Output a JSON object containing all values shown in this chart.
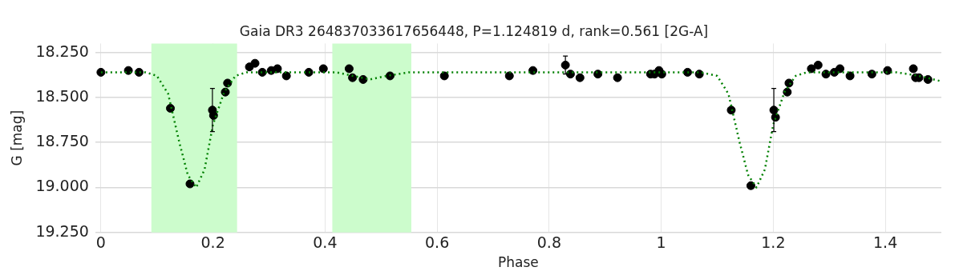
{
  "chart_data": {
    "type": "scatter",
    "title": "Gaia DR3 264837033617656448, P=1.124819 d, rank=0.561 [2G-A]",
    "xlabel": "Phase",
    "ylabel": "G [mag]",
    "xlim": [
      -0.01,
      1.5
    ],
    "xticks": [
      0,
      0.2,
      0.4,
      0.6,
      0.8,
      1,
      1.2,
      1.4
    ],
    "ylim": [
      19.25,
      18.2
    ],
    "yticks": [
      {
        "value": 18.25,
        "label": "18.250"
      },
      {
        "value": 18.5,
        "label": "18.500"
      },
      {
        "value": 18.75,
        "label": "18.750"
      },
      {
        "value": 19.0,
        "label": "19.000"
      },
      {
        "value": 19.25,
        "label": "19.250"
      }
    ],
    "grid": true,
    "legend": false,
    "bands": [
      {
        "axis": "x",
        "from": 0.09,
        "to": 0.243,
        "color": "#ccfccc"
      },
      {
        "axis": "x",
        "from": 0.413,
        "to": 0.554,
        "color": "#ccfccc"
      }
    ],
    "series": [
      {
        "type": "scatter",
        "color": "#000000",
        "marker": "circle",
        "x": [
          0.0,
          0.049,
          0.068,
          0.124,
          0.159,
          0.199,
          0.201,
          0.222,
          0.226,
          0.265,
          0.275,
          0.288,
          0.304,
          0.315,
          0.331,
          0.371,
          0.397,
          0.443,
          0.449,
          0.468,
          0.516,
          0.613,
          0.729,
          0.771,
          0.829,
          0.838,
          0.855,
          0.887,
          0.922,
          0.981,
          0.988,
          0.996,
          1.001,
          1.047,
          1.068,
          1.125,
          1.16,
          1.201,
          1.204,
          1.225,
          1.228,
          1.268,
          1.28,
          1.294,
          1.309,
          1.319,
          1.337,
          1.376,
          1.404,
          1.45,
          1.454,
          1.46,
          1.476
        ],
        "values": [
          18.36,
          18.35,
          18.36,
          18.56,
          18.98,
          18.57,
          18.6,
          18.47,
          18.42,
          18.33,
          18.31,
          18.36,
          18.35,
          18.34,
          18.38,
          18.36,
          18.34,
          18.34,
          18.39,
          18.4,
          18.38,
          18.38,
          18.38,
          18.35,
          18.32,
          18.37,
          18.39,
          18.37,
          18.39,
          18.37,
          18.37,
          18.35,
          18.37,
          18.36,
          18.37,
          18.57,
          18.99,
          18.57,
          18.61,
          18.47,
          18.42,
          18.34,
          18.32,
          18.37,
          18.36,
          18.34,
          18.38,
          18.37,
          18.35,
          18.34,
          18.39,
          18.39,
          18.4
        ],
        "errors": [
          null,
          null,
          null,
          null,
          null,
          0.12,
          null,
          null,
          null,
          null,
          null,
          null,
          null,
          null,
          null,
          null,
          null,
          null,
          null,
          null,
          null,
          null,
          null,
          null,
          0.05,
          null,
          null,
          null,
          null,
          null,
          null,
          null,
          null,
          null,
          null,
          null,
          null,
          0.12,
          null,
          null,
          null,
          null,
          null,
          null,
          null,
          null,
          null,
          null,
          null,
          null,
          null,
          null,
          null
        ]
      },
      {
        "type": "line",
        "color": "#008000",
        "marker": "none",
        "line_style": "dotted",
        "x": [
          0,
          0.08,
          0.1,
          0.12,
          0.14,
          0.155,
          0.17,
          0.185,
          0.2,
          0.22,
          0.24,
          0.26,
          0.42,
          0.45,
          0.48,
          0.51,
          0.55,
          1.07,
          1.1,
          1.12,
          1.14,
          1.155,
          1.17,
          1.185,
          1.2,
          1.22,
          1.24,
          1.26,
          1.42,
          1.46,
          1.5
        ],
        "values": [
          18.36,
          18.36,
          18.38,
          18.48,
          18.75,
          18.93,
          19.0,
          18.9,
          18.65,
          18.47,
          18.38,
          18.36,
          18.36,
          18.38,
          18.4,
          18.38,
          18.36,
          18.36,
          18.38,
          18.48,
          18.75,
          18.93,
          19.0,
          18.9,
          18.65,
          18.47,
          18.38,
          18.36,
          18.36,
          18.38,
          18.41
        ]
      }
    ]
  }
}
